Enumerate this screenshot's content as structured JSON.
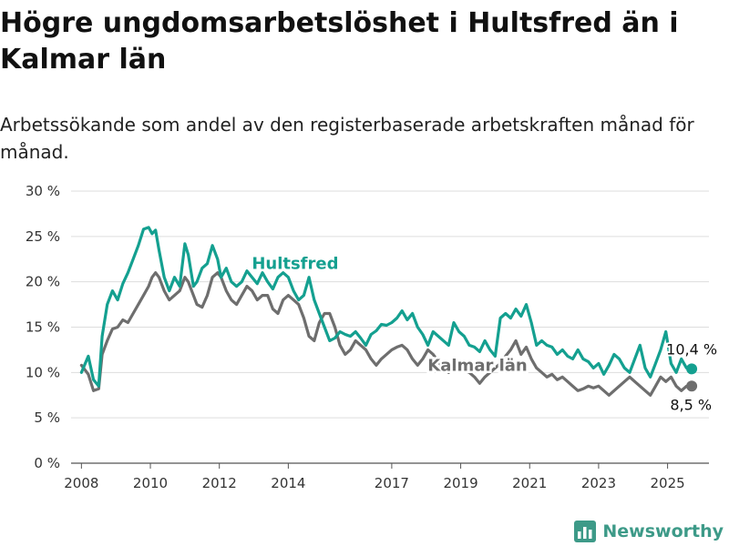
{
  "header": {
    "title": "Högre ungdomsarbetslöshet i Hultsfred än i Kalmar län",
    "subtitle": "Arbetssökande som andel av den registerbaserade arbetskraften månad för månad."
  },
  "brand": {
    "name": "Newsworthy",
    "icon": "newsworthy-logo-icon",
    "color": "#3d9a88"
  },
  "chart_data": {
    "type": "line",
    "title": "Högre ungdomsarbetslöshet i Hultsfred än i Kalmar län",
    "subtitle": "Arbetssökande som andel av den registerbaserade arbetskraften månad för månad.",
    "xlabel": "",
    "ylabel": "",
    "ylim": [
      0,
      30
    ],
    "xlim": [
      2007.7,
      2026.2
    ],
    "y_ticks": [
      0,
      5,
      10,
      15,
      20,
      25,
      30
    ],
    "y_tick_labels": [
      "0 %",
      "5 %",
      "10 %",
      "15 %",
      "20 %",
      "25 %",
      "30 %"
    ],
    "x_ticks": [
      2008,
      2010,
      2012,
      2014,
      2017,
      2019,
      2021,
      2023,
      2025
    ],
    "x_tick_labels": [
      "2008",
      "2010",
      "2012",
      "2014",
      "2017",
      "2019",
      "2021",
      "2023",
      "2025"
    ],
    "grid": "horizontal",
    "legend": "direct labels",
    "series": [
      {
        "name": "Hultsfred",
        "color": "#14a090",
        "end_value": 10.4,
        "end_label": "10,4 %",
        "x": [
          2008.0,
          2008.2,
          2008.35,
          2008.5,
          2008.6,
          2008.75,
          2008.9,
          2009.05,
          2009.2,
          2009.35,
          2009.5,
          2009.65,
          2009.8,
          2009.95,
          2010.05,
          2010.15,
          2010.25,
          2010.4,
          2010.55,
          2010.7,
          2010.85,
          2011.0,
          2011.1,
          2011.25,
          2011.35,
          2011.5,
          2011.65,
          2011.8,
          2011.95,
          2012.05,
          2012.2,
          2012.35,
          2012.5,
          2012.65,
          2012.8,
          2012.95,
          2013.1,
          2013.25,
          2013.4,
          2013.55,
          2013.7,
          2013.85,
          2014.0,
          2014.15,
          2014.3,
          2014.45,
          2014.6,
          2014.75,
          2014.9,
          2015.05,
          2015.2,
          2015.35,
          2015.5,
          2015.65,
          2015.8,
          2015.95,
          2016.1,
          2016.25,
          2016.4,
          2016.55,
          2016.7,
          2016.85,
          2017.0,
          2017.15,
          2017.3,
          2017.45,
          2017.6,
          2017.75,
          2017.9,
          2018.05,
          2018.2,
          2018.35,
          2018.5,
          2018.65,
          2018.8,
          2018.95,
          2019.1,
          2019.25,
          2019.4,
          2019.55,
          2019.7,
          2019.85,
          2020.0,
          2020.15,
          2020.3,
          2020.45,
          2020.6,
          2020.75,
          2020.9,
          2021.05,
          2021.2,
          2021.35,
          2021.5,
          2021.65,
          2021.8,
          2021.95,
          2022.1,
          2022.25,
          2022.4,
          2022.55,
          2022.7,
          2022.85,
          2023.0,
          2023.15,
          2023.3,
          2023.45,
          2023.6,
          2023.75,
          2023.9,
          2024.05,
          2024.2,
          2024.35,
          2024.5,
          2024.65,
          2024.8,
          2024.95,
          2025.1,
          2025.25,
          2025.4,
          2025.55,
          2025.7
        ],
        "y": [
          10.0,
          11.8,
          9.2,
          8.5,
          14.0,
          17.5,
          19.0,
          18.0,
          19.8,
          21.0,
          22.5,
          24.0,
          25.8,
          26.0,
          25.3,
          25.7,
          23.5,
          20.5,
          19.0,
          20.5,
          19.5,
          24.2,
          23.0,
          19.5,
          20.0,
          21.5,
          22.0,
          24.0,
          22.5,
          20.5,
          21.5,
          20.0,
          19.5,
          20.0,
          21.2,
          20.5,
          19.8,
          21.0,
          20.0,
          19.2,
          20.5,
          21.0,
          20.5,
          19.0,
          18.0,
          18.5,
          20.5,
          18.0,
          16.5,
          15.0,
          13.5,
          13.8,
          14.5,
          14.2,
          14.0,
          14.5,
          13.8,
          13.0,
          14.2,
          14.6,
          15.3,
          15.2,
          15.5,
          16.0,
          16.8,
          15.8,
          16.5,
          15.0,
          14.2,
          13.0,
          14.5,
          14.0,
          13.5,
          13.0,
          15.5,
          14.5,
          14.0,
          13.0,
          12.8,
          12.3,
          13.5,
          12.5,
          11.8,
          16.0,
          16.5,
          16.0,
          17.0,
          16.2,
          17.5,
          15.5,
          13.0,
          13.5,
          13.0,
          12.8,
          12.0,
          12.5,
          11.8,
          11.5,
          12.5,
          11.5,
          11.2,
          10.5,
          11.0,
          9.8,
          10.8,
          12.0,
          11.5,
          10.5,
          10.0,
          11.5,
          13.0,
          10.5,
          9.5,
          11.0,
          12.5,
          14.5,
          11.0,
          10.0,
          11.5,
          10.5,
          10.4
        ]
      },
      {
        "name": "Kalmar län",
        "color": "#6e6e6e",
        "end_value": 8.5,
        "end_label": "8,5 %",
        "x": [
          2008.0,
          2008.2,
          2008.35,
          2008.5,
          2008.6,
          2008.75,
          2008.9,
          2009.05,
          2009.2,
          2009.35,
          2009.5,
          2009.65,
          2009.8,
          2009.95,
          2010.05,
          2010.15,
          2010.25,
          2010.4,
          2010.55,
          2010.7,
          2010.85,
          2011.0,
          2011.1,
          2011.25,
          2011.35,
          2011.5,
          2011.65,
          2011.8,
          2011.95,
          2012.05,
          2012.2,
          2012.35,
          2012.5,
          2012.65,
          2012.8,
          2012.95,
          2013.1,
          2013.25,
          2013.4,
          2013.55,
          2013.7,
          2013.85,
          2014.0,
          2014.15,
          2014.3,
          2014.45,
          2014.6,
          2014.75,
          2014.9,
          2015.05,
          2015.2,
          2015.35,
          2015.5,
          2015.65,
          2015.8,
          2015.95,
          2016.1,
          2016.25,
          2016.4,
          2016.55,
          2016.7,
          2016.85,
          2017.0,
          2017.15,
          2017.3,
          2017.45,
          2017.6,
          2017.75,
          2017.9,
          2018.05,
          2018.2,
          2018.35,
          2018.5,
          2018.65,
          2018.8,
          2018.95,
          2019.1,
          2019.25,
          2019.4,
          2019.55,
          2019.7,
          2019.85,
          2020.0,
          2020.15,
          2020.3,
          2020.45,
          2020.6,
          2020.75,
          2020.9,
          2021.05,
          2021.2,
          2021.35,
          2021.5,
          2021.65,
          2021.8,
          2021.95,
          2022.1,
          2022.25,
          2022.4,
          2022.55,
          2022.7,
          2022.85,
          2023.0,
          2023.15,
          2023.3,
          2023.45,
          2023.6,
          2023.75,
          2023.9,
          2024.05,
          2024.2,
          2024.35,
          2024.5,
          2024.65,
          2024.8,
          2024.95,
          2025.1,
          2025.25,
          2025.4,
          2025.55,
          2025.7
        ],
        "y": [
          10.8,
          9.8,
          8.0,
          8.2,
          12.0,
          13.5,
          14.8,
          15.0,
          15.8,
          15.5,
          16.5,
          17.5,
          18.5,
          19.5,
          20.5,
          21.0,
          20.5,
          19.0,
          18.0,
          18.5,
          19.0,
          20.5,
          20.0,
          18.5,
          17.5,
          17.2,
          18.5,
          20.5,
          21.0,
          20.5,
          19.0,
          18.0,
          17.5,
          18.5,
          19.5,
          19.0,
          18.0,
          18.5,
          18.5,
          17.0,
          16.5,
          18.0,
          18.5,
          18.0,
          17.5,
          16.0,
          14.0,
          13.5,
          15.5,
          16.5,
          16.5,
          15.0,
          13.0,
          12.0,
          12.5,
          13.5,
          13.0,
          12.5,
          11.5,
          10.8,
          11.5,
          12.0,
          12.5,
          12.8,
          13.0,
          12.5,
          11.5,
          10.8,
          11.5,
          12.5,
          12.0,
          11.2,
          10.5,
          10.0,
          10.8,
          10.5,
          10.2,
          10.0,
          9.5,
          8.8,
          9.5,
          10.0,
          10.5,
          11.0,
          11.8,
          12.5,
          13.5,
          12.0,
          12.8,
          11.5,
          10.5,
          10.0,
          9.5,
          9.8,
          9.2,
          9.5,
          9.0,
          8.5,
          8.0,
          8.2,
          8.5,
          8.3,
          8.5,
          8.0,
          7.5,
          8.0,
          8.5,
          9.0,
          9.5,
          9.0,
          8.5,
          8.0,
          7.5,
          8.5,
          9.5,
          9.0,
          9.5,
          8.5,
          8.0,
          8.5,
          8.5
        ]
      }
    ],
    "annotations": [
      {
        "text": "Hultsfred",
        "series": "Hultsfred",
        "at_x": 2013.1
      },
      {
        "text": "Kalmar län",
        "series": "Kalmar län",
        "at_x": 2018.2
      }
    ]
  }
}
